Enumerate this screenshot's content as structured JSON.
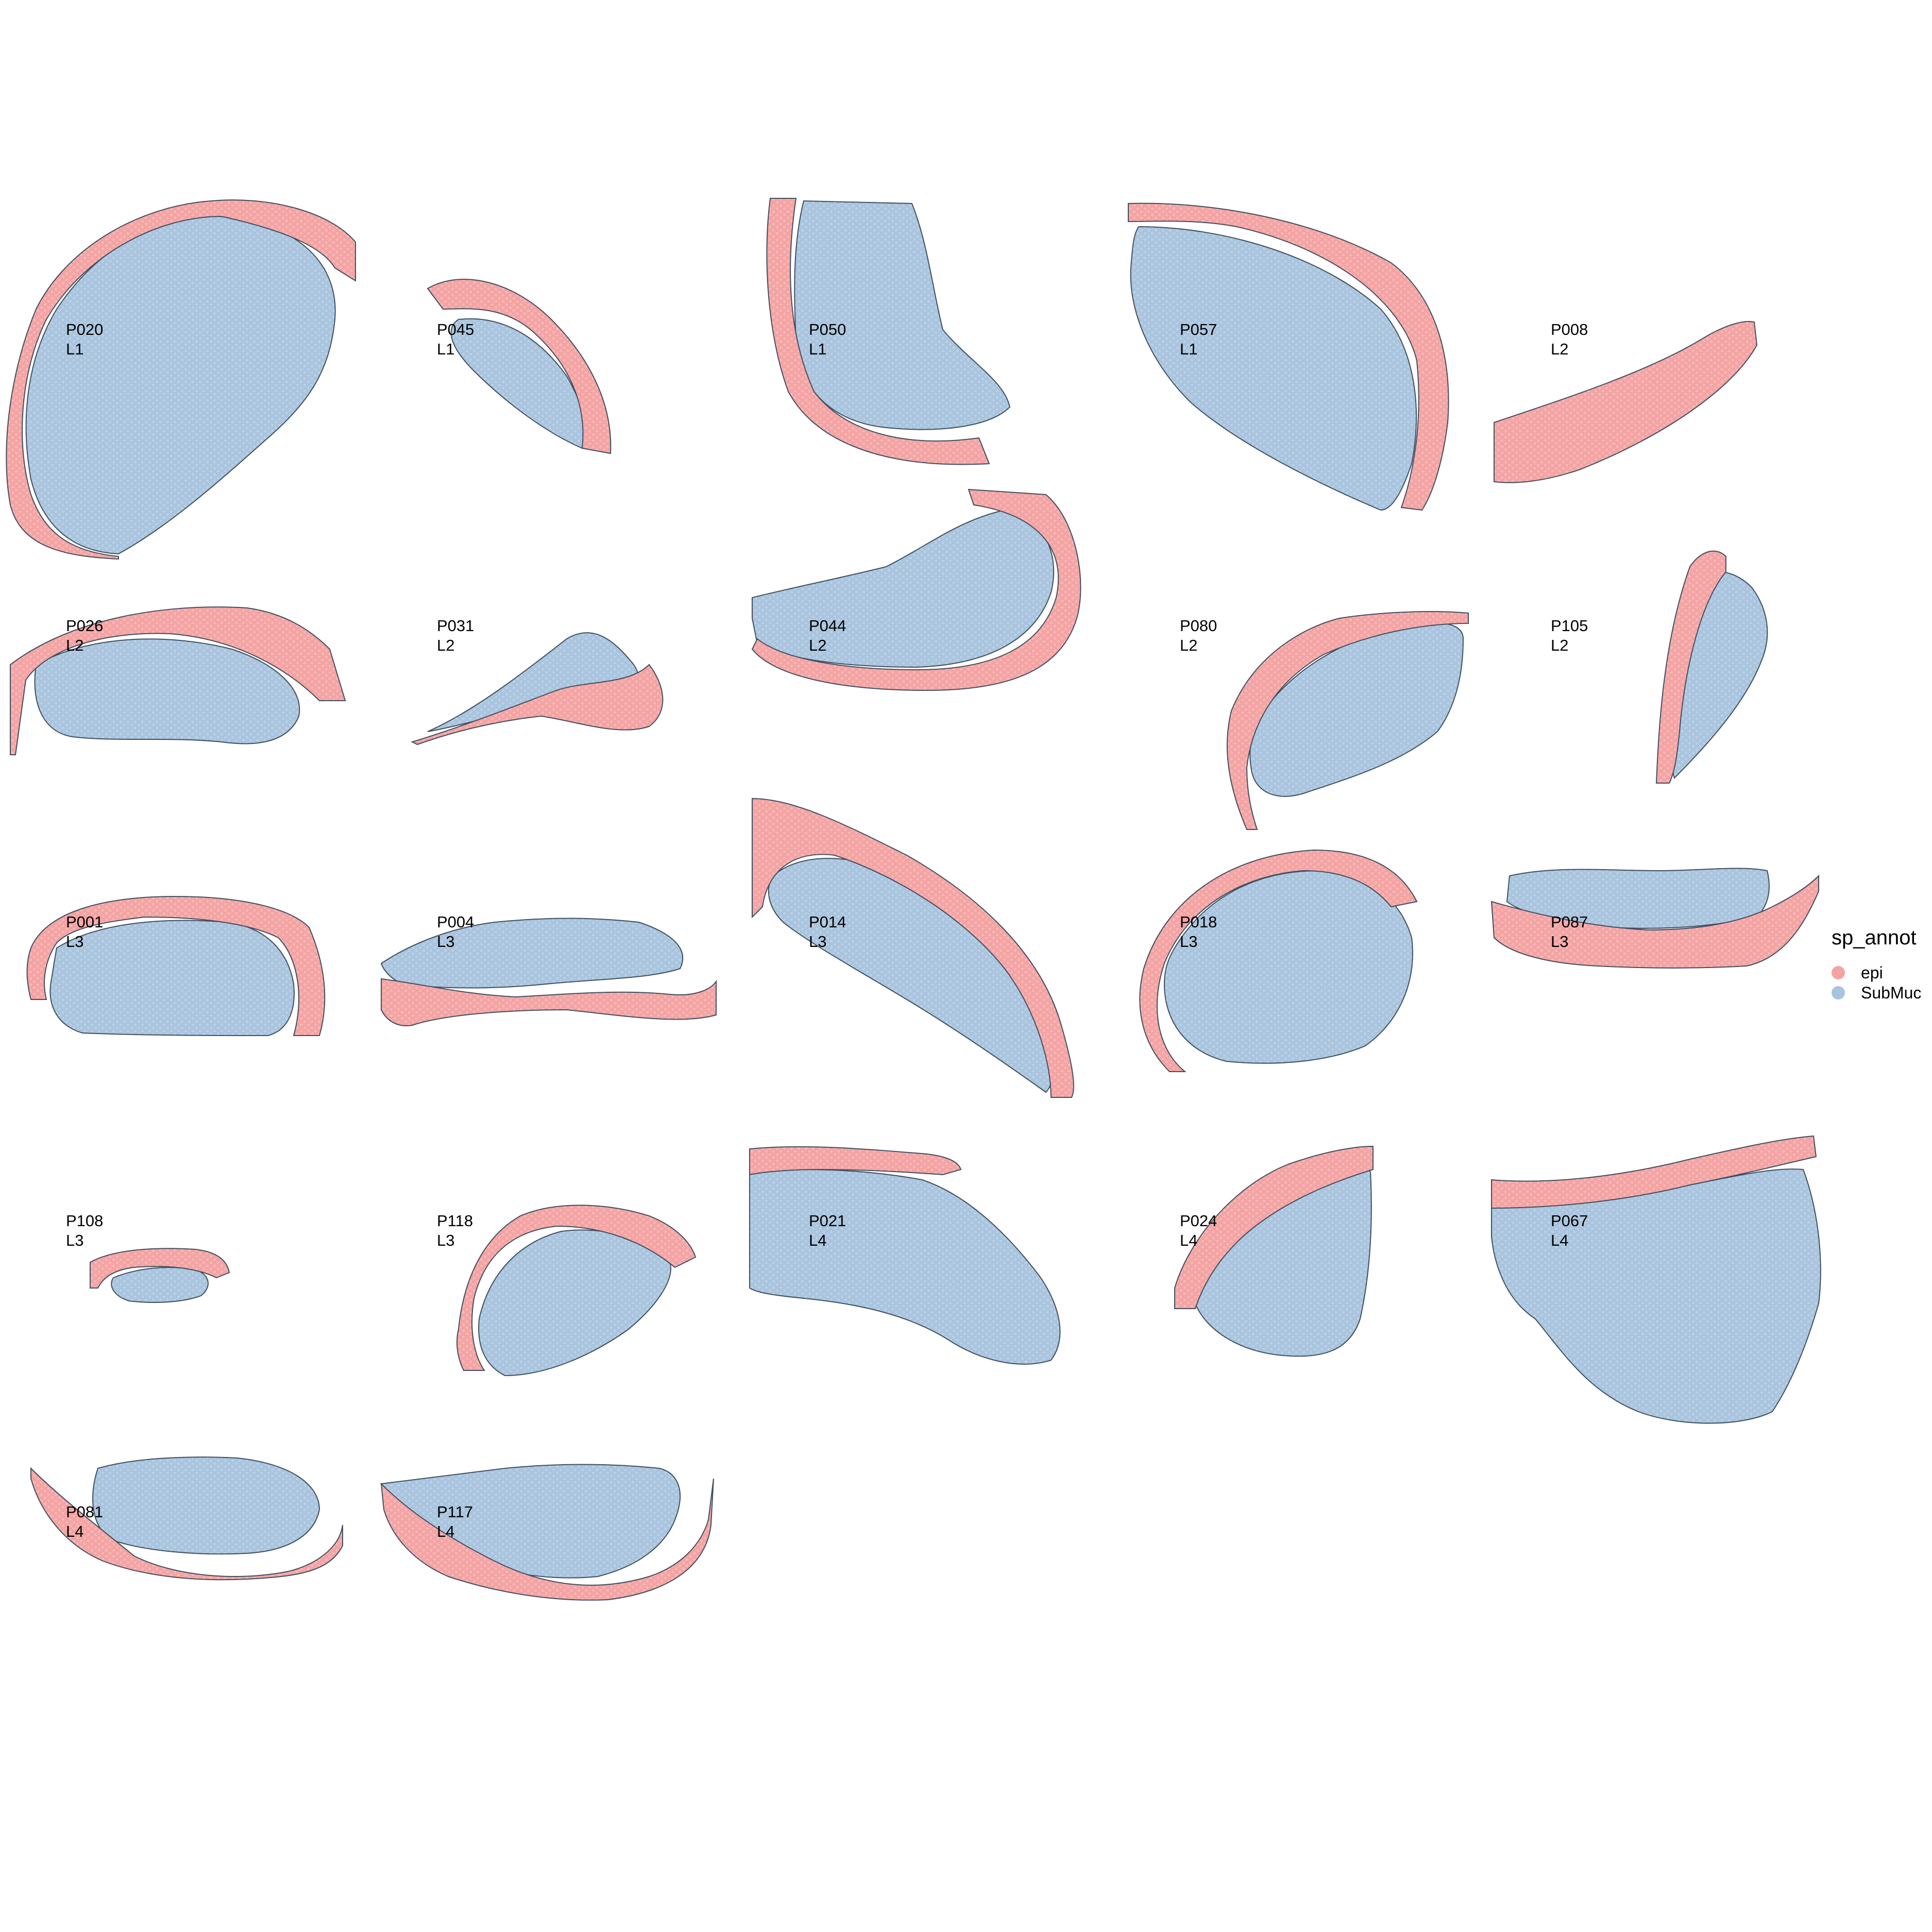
{
  "chart_data": {
    "type": "scatter",
    "title": "",
    "xlabel": "",
    "ylabel": "",
    "grid": false,
    "legend": {
      "title": "sp_annot",
      "position": "right",
      "entries": [
        {
          "key": "epi",
          "label": "epi",
          "color": "#F4A3A3"
        },
        {
          "key": "submuc",
          "label": "SubMuc",
          "color": "#A9C4DE"
        }
      ]
    },
    "panels": [
      {
        "id": "P020",
        "line1": "P020",
        "line2": "L1"
      },
      {
        "id": "P045",
        "line1": "P045",
        "line2": "L1"
      },
      {
        "id": "P050",
        "line1": "P050",
        "line2": "L1"
      },
      {
        "id": "P057",
        "line1": "P057",
        "line2": "L1"
      },
      {
        "id": "P008",
        "line1": "P008",
        "line2": "L2"
      },
      {
        "id": "P026",
        "line1": "P026",
        "line2": "L2"
      },
      {
        "id": "P031",
        "line1": "P031",
        "line2": "L2"
      },
      {
        "id": "P044",
        "line1": "P044",
        "line2": "L2"
      },
      {
        "id": "P080",
        "line1": "P080",
        "line2": "L2"
      },
      {
        "id": "P105",
        "line1": "P105",
        "line2": "L2"
      },
      {
        "id": "P001",
        "line1": "P001",
        "line2": "L3"
      },
      {
        "id": "P004",
        "line1": "P004",
        "line2": "L3"
      },
      {
        "id": "P014",
        "line1": "P014",
        "line2": "L3"
      },
      {
        "id": "P018",
        "line1": "P018",
        "line2": "L3"
      },
      {
        "id": "P087",
        "line1": "P087",
        "line2": "L3"
      },
      {
        "id": "P108",
        "line1": "P108",
        "line2": "L3"
      },
      {
        "id": "P118",
        "line1": "P118",
        "line2": "L3"
      },
      {
        "id": "P021",
        "line1": "P021",
        "line2": "L4"
      },
      {
        "id": "P024",
        "line1": "P024",
        "line2": "L4"
      },
      {
        "id": "P067",
        "line1": "P067",
        "line2": "L4"
      },
      {
        "id": "P081",
        "line1": "P081",
        "line2": "L4"
      },
      {
        "id": "P117",
        "line1": "P117",
        "line2": "L4"
      }
    ]
  },
  "colors": {
    "epi": "#F4A3A3",
    "submuc": "#A9C4DE",
    "outline": "#3f4f5f"
  }
}
